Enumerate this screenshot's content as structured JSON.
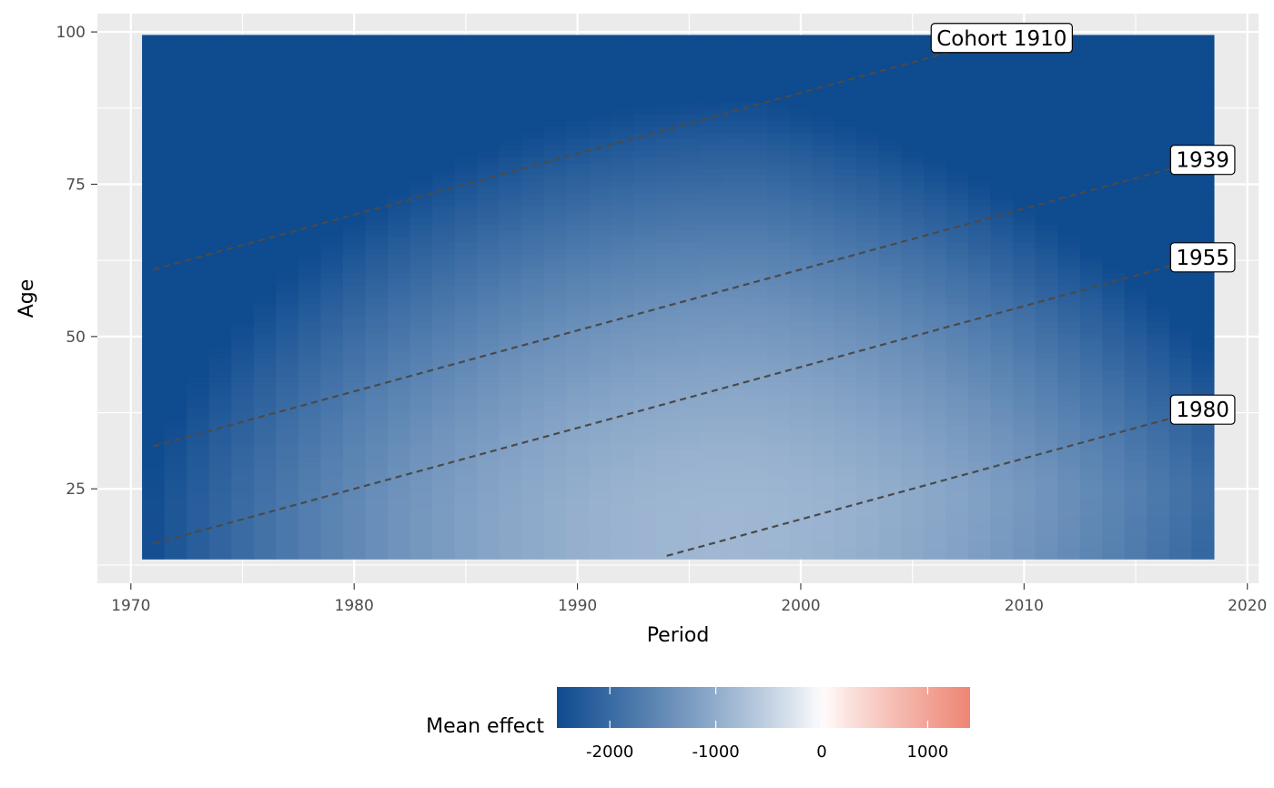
{
  "chart_data": {
    "type": "heatmap",
    "title": "",
    "xlabel": "Period",
    "ylabel": "Age",
    "xlim": [
      1968.5,
      2020.5
    ],
    "ylim": [
      9.5,
      103
    ],
    "x_ticks": [
      1970,
      1980,
      1990,
      2000,
      2010,
      2020
    ],
    "y_ticks": [
      25,
      50,
      75,
      100
    ],
    "grid": true,
    "heatmap": {
      "period_range": [
        1971,
        2018
      ],
      "age_range": [
        14,
        99
      ],
      "color_low": "#0f4b8f",
      "color_mid": "#ffffff",
      "color_high": "#ee8674",
      "value_min": -2500,
      "value_mid": 0,
      "value_max": 1400
    },
    "cohort_lines": [
      {
        "cohort": 1910,
        "label": "Cohort 1910"
      },
      {
        "cohort": 1939,
        "label": "1939"
      },
      {
        "cohort": 1955,
        "label": "1955"
      },
      {
        "cohort": 1980,
        "label": "1980"
      }
    ],
    "legend": {
      "title": "Mean effect",
      "placement": "bottom",
      "ticks": [
        -2000,
        -1000,
        0,
        1000
      ],
      "tick_labels": [
        "-2000",
        "-1000",
        "0",
        "1000"
      ]
    }
  }
}
